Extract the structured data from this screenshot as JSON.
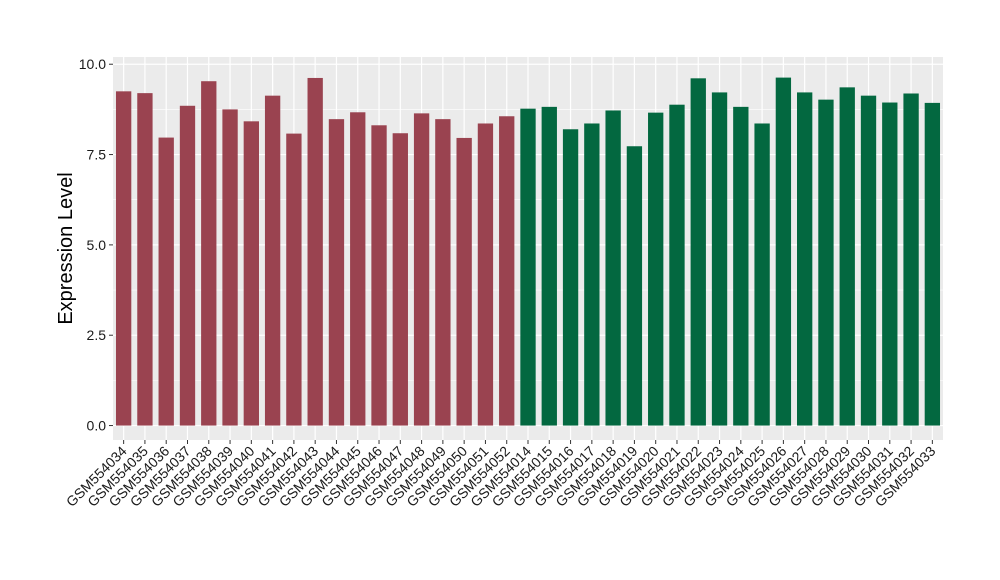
{
  "chart_data": {
    "type": "bar",
    "title": "",
    "xlabel": "",
    "ylabel": "Expression Level",
    "ylim": [
      -0.4,
      10.2
    ],
    "yticks": [
      0.0,
      2.5,
      5.0,
      7.5,
      10.0
    ],
    "ytick_labels": [
      "0.0",
      "2.5",
      "5.0",
      "7.5",
      "10.0"
    ],
    "grid": true,
    "legend": "none",
    "colors": {
      "group1": "#9a4350",
      "group2": "#036840",
      "panel": "#ebebeb",
      "grid": "#ffffff"
    },
    "categories": [
      "GSM554034",
      "GSM554035",
      "GSM554036",
      "GSM554037",
      "GSM554038",
      "GSM554039",
      "GSM554040",
      "GSM554041",
      "GSM554042",
      "GSM554043",
      "GSM554044",
      "GSM554045",
      "GSM554046",
      "GSM554047",
      "GSM554048",
      "GSM554049",
      "GSM554050",
      "GSM554051",
      "GSM554052",
      "GSM554014",
      "GSM554015",
      "GSM554016",
      "GSM554017",
      "GSM554018",
      "GSM554019",
      "GSM554020",
      "GSM554021",
      "GSM554022",
      "GSM554023",
      "GSM554024",
      "GSM554025",
      "GSM554026",
      "GSM554027",
      "GSM554028",
      "GSM554029",
      "GSM554030",
      "GSM554031",
      "GSM554032",
      "GSM554033"
    ],
    "values": [
      9.25,
      9.2,
      7.97,
      8.85,
      9.53,
      8.75,
      8.42,
      9.13,
      8.08,
      9.62,
      8.48,
      8.67,
      8.31,
      8.09,
      8.64,
      8.48,
      7.96,
      8.36,
      8.56,
      8.77,
      8.82,
      8.2,
      8.36,
      8.72,
      7.73,
      8.66,
      8.88,
      9.61,
      9.22,
      8.82,
      8.36,
      9.63,
      9.22,
      9.02,
      9.36,
      9.13,
      8.94,
      9.19,
      8.93
    ],
    "groups": [
      1,
      1,
      1,
      1,
      1,
      1,
      1,
      1,
      1,
      1,
      1,
      1,
      1,
      1,
      1,
      1,
      1,
      1,
      1,
      2,
      2,
      2,
      2,
      2,
      2,
      2,
      2,
      2,
      2,
      2,
      2,
      2,
      2,
      2,
      2,
      2,
      2,
      2,
      2
    ]
  }
}
